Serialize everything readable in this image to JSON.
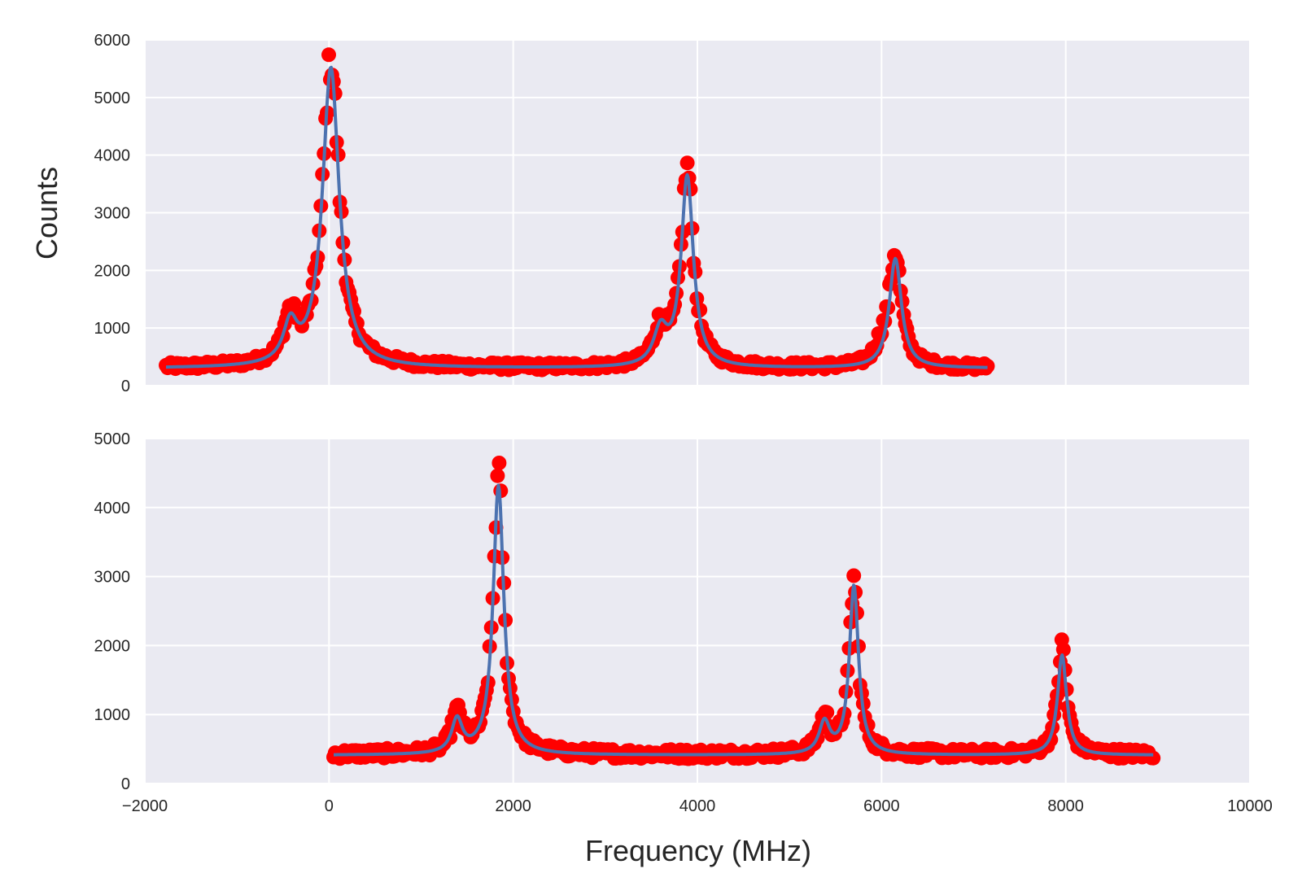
{
  "chart_data": [
    {
      "type": "scatter",
      "panel": "top",
      "xlim": [
        -2000,
        10000
      ],
      "ylim": [
        0,
        6000
      ],
      "grid": true,
      "ylabel": "Counts",
      "xlabel": "",
      "yticks": [
        0,
        1000,
        2000,
        3000,
        4000,
        5000,
        6000
      ],
      "xticks": [
        -2000,
        0,
        2000,
        4000,
        6000,
        8000,
        10000
      ],
      "x_tick_labels_shown": false,
      "series": [
        {
          "kind": "points",
          "color": "#ff0000",
          "x_range": [
            -1770,
            7150
          ],
          "baseline": 310,
          "peaks": [
            {
              "x": 20,
              "amplitude": 5300,
              "width": 110
            },
            {
              "x": -420,
              "amplitude": 750,
              "width": 90
            },
            {
              "x": 3890,
              "amplitude": 3400,
              "width": 80
            },
            {
              "x": 3600,
              "amplitude": 650,
              "width": 90
            },
            {
              "x": 6150,
              "amplitude": 1950,
              "width": 80
            },
            {
              "x": 6000,
              "amplitude": 250,
              "width": 80
            }
          ]
        },
        {
          "kind": "fit-line",
          "color": "#4c72b0",
          "x_range": [
            -1770,
            7150
          ],
          "baseline": 300,
          "peaks": [
            {
              "x": 20,
              "amplitude": 5200,
              "width": 110
            },
            {
              "x": -420,
              "amplitude": 650,
              "width": 90
            },
            {
              "x": 3890,
              "amplitude": 3300,
              "width": 80
            },
            {
              "x": 3600,
              "amplitude": 600,
              "width": 90
            },
            {
              "x": 6150,
              "amplitude": 1900,
              "width": 80
            }
          ]
        }
      ]
    },
    {
      "type": "scatter",
      "panel": "bottom",
      "xlim": [
        -2000,
        10000
      ],
      "ylim": [
        0,
        5000
      ],
      "grid": true,
      "ylabel": "",
      "xlabel": "Frequency (MHz)",
      "yticks": [
        0,
        1000,
        2000,
        3000,
        4000,
        5000
      ],
      "xticks": [
        -2000,
        0,
        2000,
        4000,
        6000,
        8000,
        10000
      ],
      "x_tick_labels_shown": true,
      "series": [
        {
          "kind": "points",
          "color": "#ff0000",
          "x_range": [
            50,
            8950
          ],
          "baseline": 420,
          "peaks": [
            {
              "x": 1840,
              "amplitude": 4000,
              "width": 70
            },
            {
              "x": 1390,
              "amplitude": 550,
              "width": 70
            },
            {
              "x": 5700,
              "amplitude": 2500,
              "width": 60
            },
            {
              "x": 5380,
              "amplitude": 500,
              "width": 70
            },
            {
              "x": 7960,
              "amplitude": 1550,
              "width": 60
            }
          ]
        },
        {
          "kind": "fit-line",
          "color": "#4c72b0",
          "x_range": [
            50,
            8950
          ],
          "baseline": 410,
          "peaks": [
            {
              "x": 1840,
              "amplitude": 3900,
              "width": 70
            },
            {
              "x": 1390,
              "amplitude": 480,
              "width": 70
            },
            {
              "x": 5700,
              "amplitude": 2450,
              "width": 60
            },
            {
              "x": 5380,
              "amplitude": 450,
              "width": 70
            },
            {
              "x": 7960,
              "amplitude": 1450,
              "width": 60
            }
          ]
        }
      ]
    }
  ]
}
